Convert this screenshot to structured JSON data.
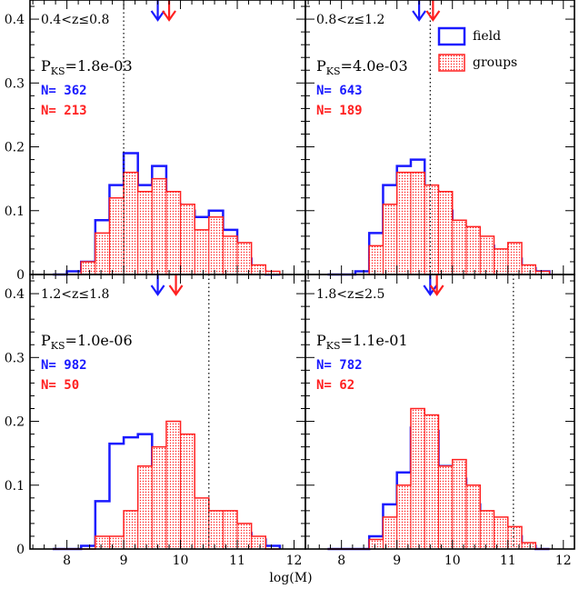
{
  "colors": {
    "field": "#1a1aff",
    "groups": "#ff2020",
    "axis": "#000000"
  },
  "legend": {
    "field": "field",
    "groups": "groups"
  },
  "xlabel": "log(M)",
  "chart_data": [
    {
      "type": "bar",
      "panel": "top-left",
      "label": "0.4<z≤0.8",
      "pks_prefix": "P",
      "pks_sub": "KS",
      "pks_value": "=1.8e-03",
      "n_field": "N= 362",
      "n_groups": "N= 213",
      "bin_edges": [
        7.75,
        8.0,
        8.25,
        8.5,
        8.75,
        9.0,
        9.25,
        9.5,
        9.75,
        10.0,
        10.25,
        10.5,
        10.75,
        11.0,
        11.25,
        11.5,
        11.75
      ],
      "series": [
        {
          "name": "field",
          "values": [
            0.0,
            0.005,
            0.02,
            0.085,
            0.14,
            0.19,
            0.14,
            0.17,
            0.11,
            0.1,
            0.09,
            0.1,
            0.07,
            0.025,
            0.005,
            0.0
          ]
        },
        {
          "name": "groups",
          "values": [
            0.0,
            0.0,
            0.02,
            0.065,
            0.12,
            0.16,
            0.13,
            0.15,
            0.13,
            0.11,
            0.07,
            0.09,
            0.06,
            0.05,
            0.015,
            0.005
          ]
        }
      ],
      "arrow_field": 9.6,
      "arrow_groups": 9.8,
      "dotted_line": 9.0,
      "xlim": [
        7.35,
        12.2
      ],
      "ylim": [
        0,
        0.43
      ],
      "yticks": [
        "0",
        "0.1",
        "0.2",
        "0.3",
        "0.4"
      ]
    },
    {
      "type": "bar",
      "panel": "top-right",
      "label": "0.8<z≤1.2",
      "pks_prefix": "P",
      "pks_sub": "KS",
      "pks_value": "=4.0e-03",
      "n_field": "N= 643",
      "n_groups": "N= 189",
      "bin_edges": [
        7.75,
        8.0,
        8.25,
        8.5,
        8.75,
        9.0,
        9.25,
        9.5,
        9.75,
        10.0,
        10.25,
        10.5,
        10.75,
        11.0,
        11.25,
        11.5,
        11.75
      ],
      "series": [
        {
          "name": "field",
          "values": [
            0.0,
            0.0,
            0.005,
            0.065,
            0.14,
            0.17,
            0.18,
            0.13,
            0.1,
            0.075,
            0.055,
            0.045,
            0.035,
            0.025,
            0.01,
            0.005
          ]
        },
        {
          "name": "groups",
          "values": [
            0.0,
            0.0,
            0.0,
            0.045,
            0.11,
            0.16,
            0.16,
            0.14,
            0.13,
            0.085,
            0.075,
            0.06,
            0.04,
            0.05,
            0.015,
            0.005
          ]
        }
      ],
      "arrow_field": 9.4,
      "arrow_groups": 9.65,
      "dotted_line": 9.6,
      "xlim": [
        7.35,
        12.2
      ],
      "ylim": [
        0,
        0.43
      ],
      "yticks": []
    },
    {
      "type": "bar",
      "panel": "bottom-left",
      "label": "1.2<z≤1.8",
      "pks_prefix": "P",
      "pks_sub": "KS",
      "pks_value": "=1.0e-06",
      "n_field": "N= 982",
      "n_groups": "N= 50",
      "bin_edges": [
        7.75,
        8.0,
        8.25,
        8.5,
        8.75,
        9.0,
        9.25,
        9.5,
        9.75,
        10.0,
        10.25,
        10.5,
        10.75,
        11.0,
        11.25,
        11.5,
        11.75
      ],
      "series": [
        {
          "name": "field",
          "values": [
            0.0,
            0.0,
            0.005,
            0.075,
            0.165,
            0.175,
            0.18,
            0.13,
            0.08,
            0.065,
            0.05,
            0.04,
            0.03,
            0.025,
            0.015,
            0.005
          ]
        },
        {
          "name": "groups",
          "values": [
            0.0,
            0.0,
            0.0,
            0.02,
            0.02,
            0.06,
            0.13,
            0.16,
            0.2,
            0.18,
            0.08,
            0.06,
            0.06,
            0.04,
            0.02,
            0.0
          ]
        }
      ],
      "arrow_field": 9.6,
      "arrow_groups": 9.92,
      "dotted_line": 10.5,
      "xlim": [
        7.35,
        12.2
      ],
      "ylim": [
        0,
        0.43
      ],
      "xticks": [
        "8",
        "9",
        "10",
        "11",
        "12"
      ],
      "yticks": [
        "0",
        "0.1",
        "0.2",
        "0.3",
        "0.4"
      ]
    },
    {
      "type": "bar",
      "panel": "bottom-right",
      "label": "1.8<z≤2.5",
      "pks_prefix": "P",
      "pks_sub": "KS",
      "pks_value": "=1.1e-01",
      "n_field": "N= 782",
      "n_groups": "N= 62",
      "bin_edges": [
        7.75,
        8.0,
        8.25,
        8.5,
        8.75,
        9.0,
        9.25,
        9.5,
        9.75,
        10.0,
        10.25,
        10.5,
        10.75,
        11.0,
        11.25,
        11.5,
        11.75
      ],
      "series": [
        {
          "name": "field",
          "values": [
            0.0,
            0.0,
            0.0,
            0.02,
            0.07,
            0.12,
            0.19,
            0.185,
            0.13,
            0.11,
            0.07,
            0.045,
            0.03,
            0.02,
            0.005,
            0.0
          ]
        },
        {
          "name": "groups",
          "values": [
            0.0,
            0.0,
            0.0,
            0.015,
            0.05,
            0.1,
            0.22,
            0.21,
            0.13,
            0.14,
            0.1,
            0.06,
            0.05,
            0.035,
            0.01,
            0.0
          ]
        }
      ],
      "arrow_field": 9.6,
      "arrow_groups": 9.72,
      "dotted_line": 11.1,
      "xlim": [
        7.35,
        12.2
      ],
      "ylim": [
        0,
        0.43
      ],
      "xticks": [
        "8",
        "9",
        "10",
        "11",
        "12"
      ],
      "yticks": []
    }
  ]
}
